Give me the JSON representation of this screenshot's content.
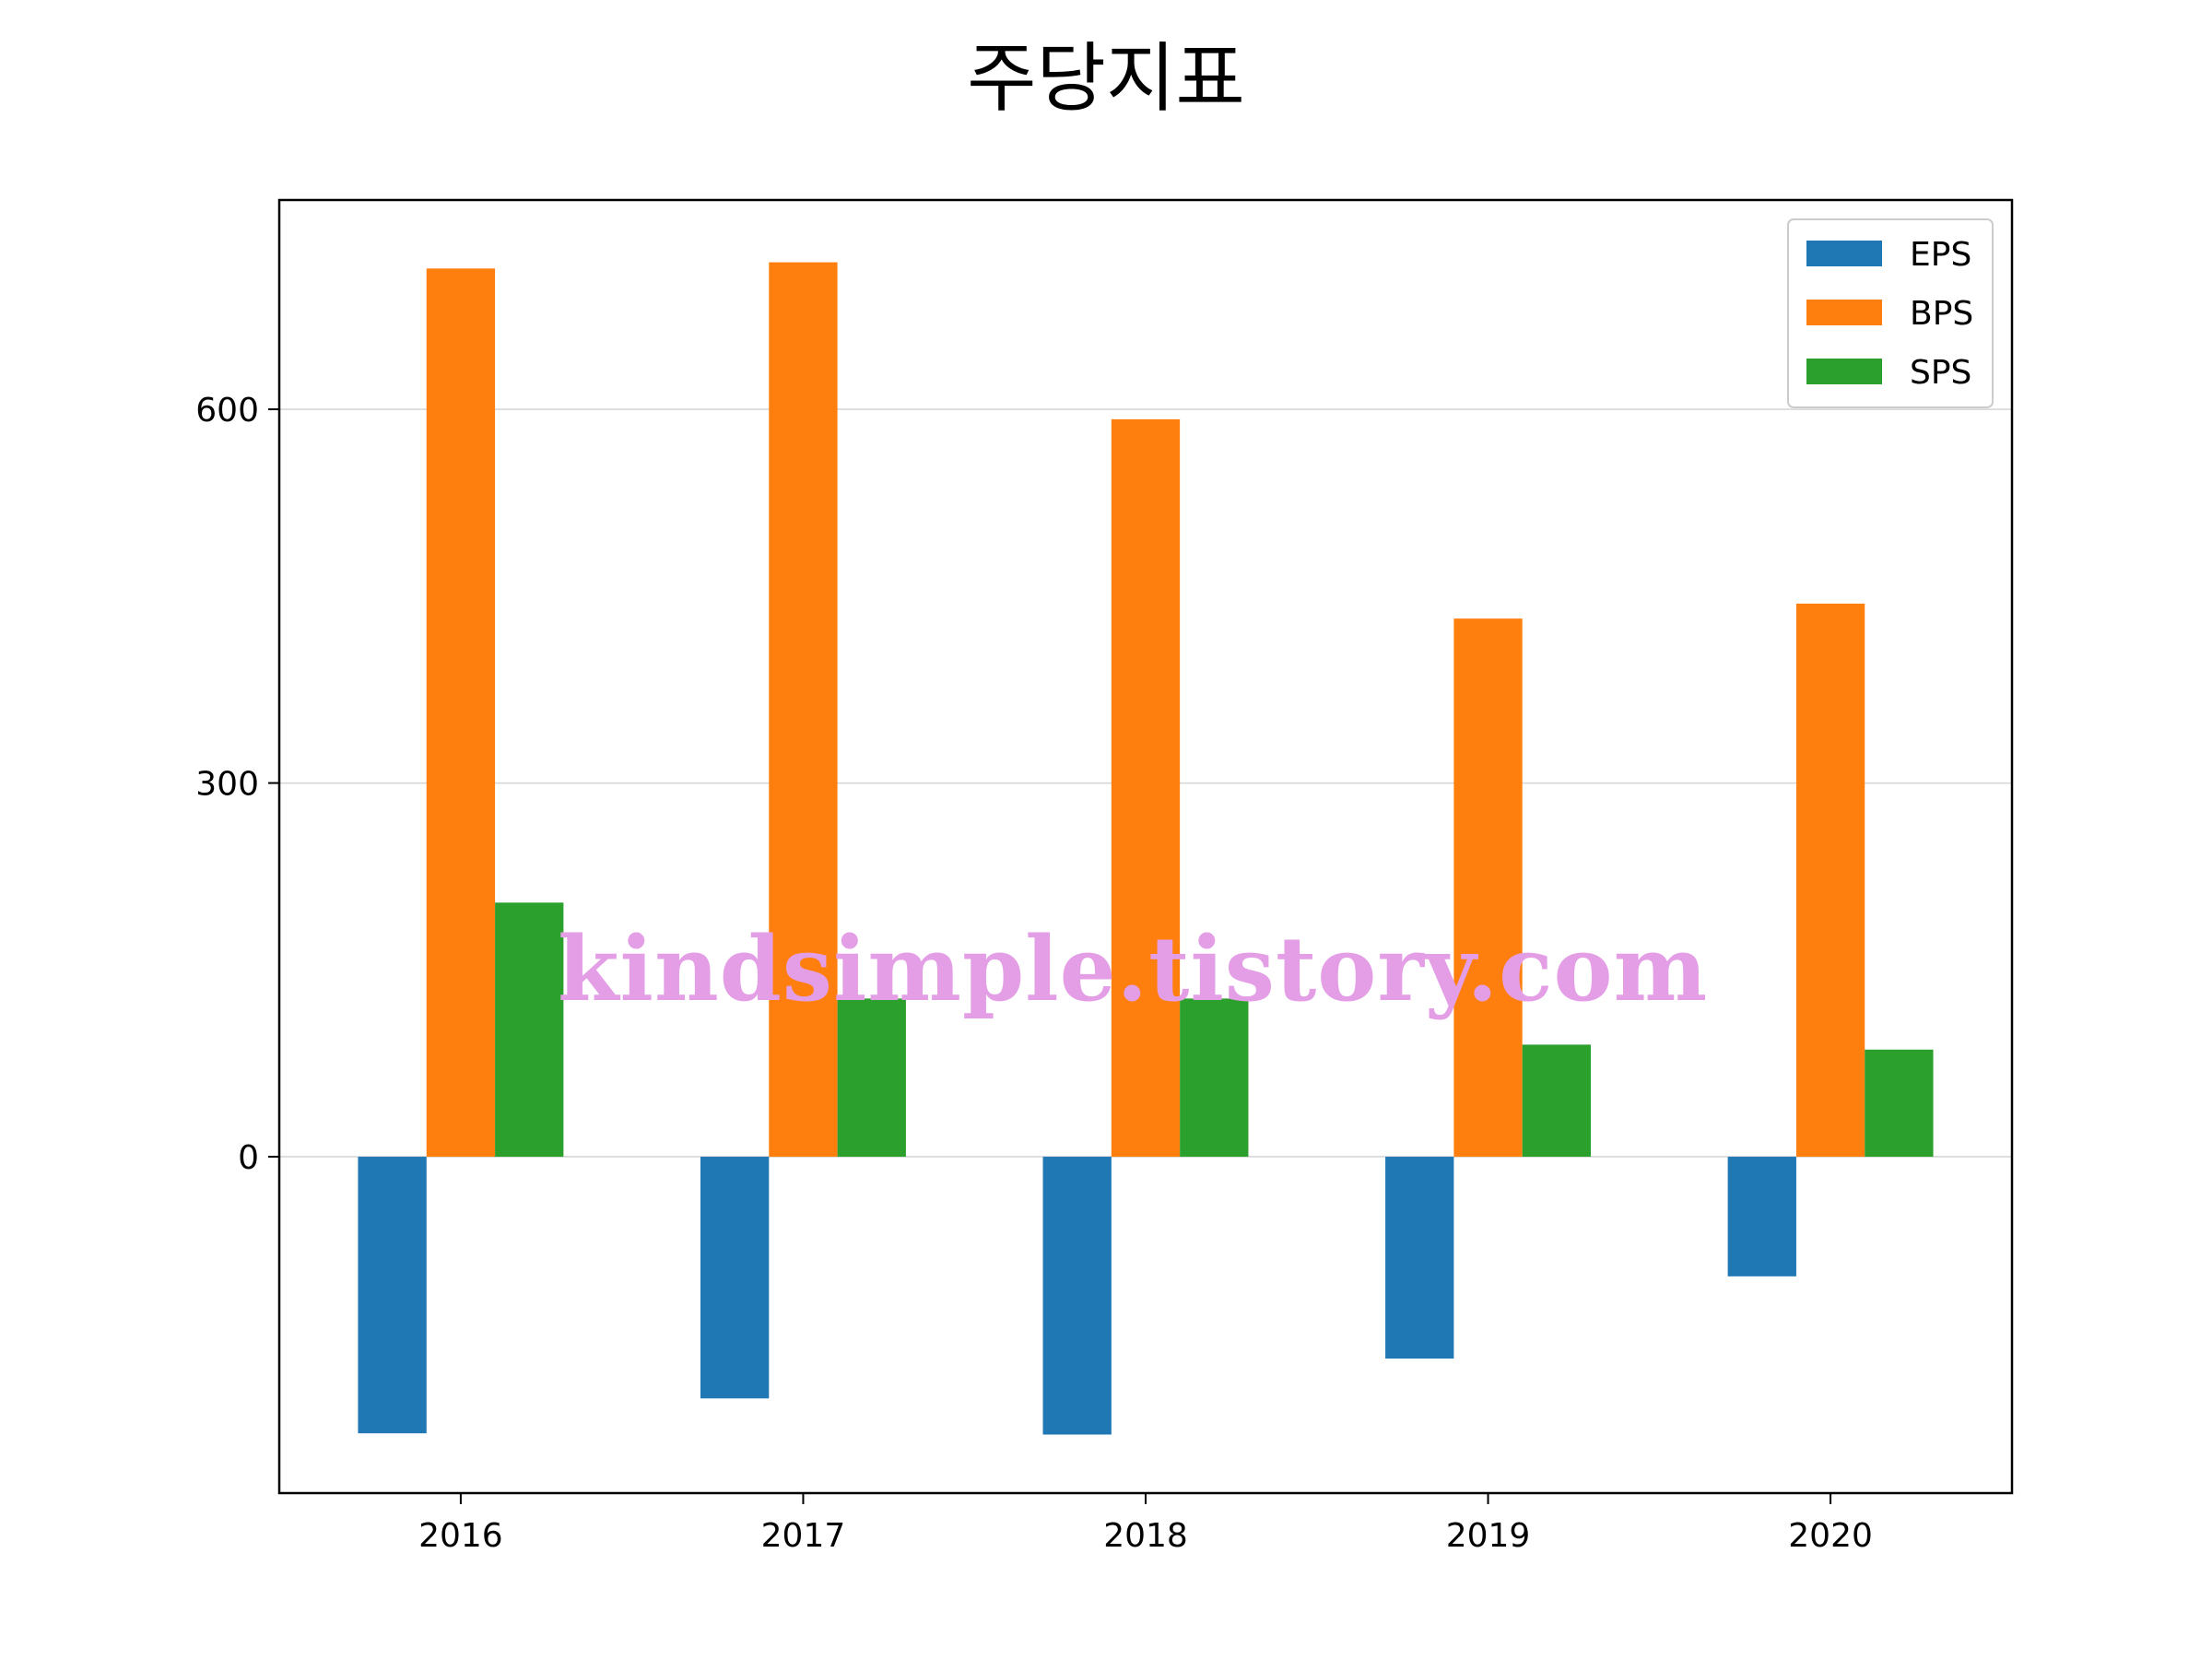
{
  "title": "주당지표",
  "watermark": "kindsimple.tistory.com",
  "chart_data": {
    "type": "bar",
    "title": "주당지표",
    "xlabel": "",
    "ylabel": "",
    "categories": [
      "2016",
      "2017",
      "2018",
      "2019",
      "2020"
    ],
    "series": [
      {
        "name": "EPS",
        "color": "#1f77b4",
        "values": [
          -222,
          -194,
          -223,
          -162,
          -96
        ]
      },
      {
        "name": "BPS",
        "color": "#ff7f0e",
        "values": [
          713,
          718,
          592,
          432,
          444
        ]
      },
      {
        "name": "SPS",
        "color": "#2ca02c",
        "values": [
          204,
          127,
          127,
          90,
          86
        ]
      }
    ],
    "yticks": [
      0,
      300,
      600
    ],
    "ylim": [
      -270,
      768
    ],
    "grid": "y",
    "legend": "top-right"
  }
}
